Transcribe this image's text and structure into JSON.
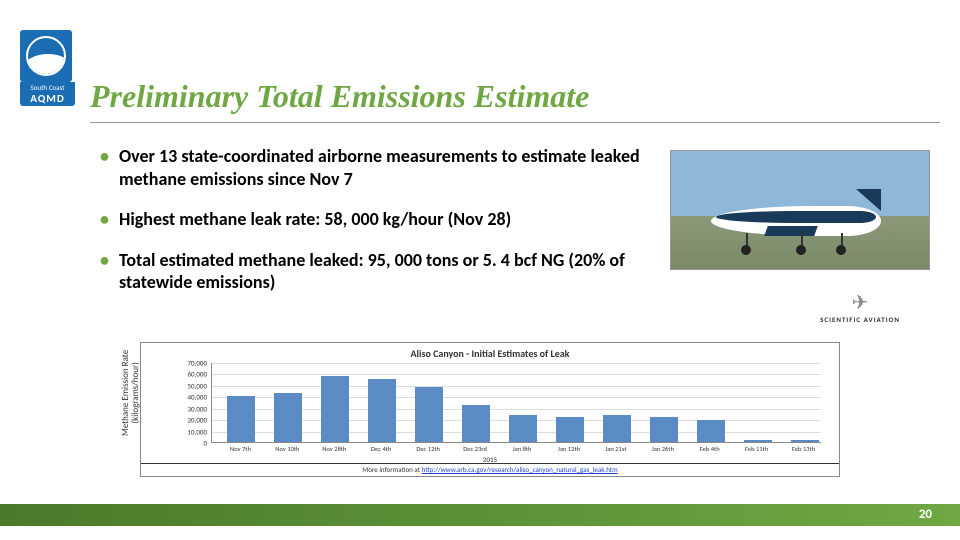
{
  "logo": {
    "line1": "South Coast",
    "line2": "AQMD"
  },
  "title": "Preliminary Total Emissions Estimate",
  "bullets": [
    "Over 13 state-coordinated airborne measurements to estimate leaked methane emissions since Nov 7",
    "Highest methane leak rate: 58, 000 kg/hour (Nov 28)",
    "Total estimated methane leaked: 95, 000 tons or 5. 4 bcf NG (20% of statewide emissions)"
  ],
  "sci_aviation": "SCIENTIFIC AVIATION",
  "chart": {
    "type": "bar",
    "title": "Aliso Canyon - Initial Estimates of Leak",
    "ylabel": "Methane Emission Rate\n(kilograms/hour)",
    "categories": [
      "Nov 7th",
      "Nov 10th",
      "Nov 28th",
      "Dec 4th",
      "Dec 12th",
      "Dec 23rd",
      "Jan 8th",
      "Jan 12th",
      "Jan 21st",
      "Jan 26th",
      "Feb 4th",
      "Feb 11th",
      "Feb 13th"
    ],
    "year_label": "2015",
    "values": [
      40000,
      43000,
      58000,
      55000,
      48000,
      32000,
      24000,
      22000,
      24000,
      22000,
      19000,
      2000,
      2000
    ],
    "yticks": [
      0,
      10000,
      20000,
      30000,
      40000,
      50000,
      60000,
      70000
    ],
    "ytick_labels": [
      "0",
      "10,000",
      "20,000",
      "30,000",
      "40,000",
      "50,000",
      "60,000",
      "70,000"
    ],
    "ylim_max": 70000,
    "bar_color": "#5b8bc4",
    "grid_color": "#dddddd",
    "axis_color": "#888888",
    "background_color": "#ffffff",
    "title_fontsize": 10,
    "label_fontsize": 9,
    "tick_fontsize": 7,
    "footer_text": "More information at ",
    "footer_link": "http://www.arb.ca.gov/research/aliso_canyon_natural_gas_leak.htm"
  },
  "page_number": "20",
  "colors": {
    "accent_green": "#6fa843",
    "logo_blue": "#1a6db3",
    "footer_green_dark": "#4a7a2a"
  }
}
